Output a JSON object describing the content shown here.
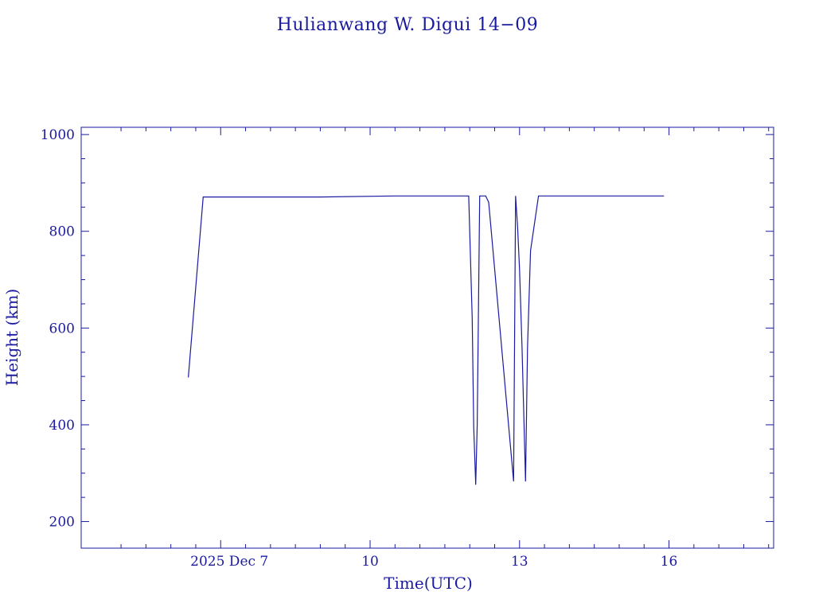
{
  "chart_data": {
    "type": "line",
    "title": "Hulianwang W. Digui 14−09",
    "xlabel": "Time(UTC)",
    "ylabel": "Height (km)",
    "x_unit": "days (December 2025)",
    "xlim": [
      4.2,
      18.1
    ],
    "ylim": [
      145,
      1015
    ],
    "x_major_ticks": [
      {
        "value": 7,
        "label": "2025 Dec  7"
      },
      {
        "value": 10,
        "label": "10"
      },
      {
        "value": 13,
        "label": "13"
      },
      {
        "value": 16,
        "label": "16"
      }
    ],
    "x_minor_ticks": [
      5,
      5.5,
      6,
      6.5,
      7.5,
      8,
      8.5,
      9,
      9.5,
      10.5,
      11,
      11.5,
      12,
      12.5,
      13.5,
      14,
      14.5,
      15,
      15.5,
      16.5,
      17,
      17.5,
      18
    ],
    "y_major_ticks": [
      200,
      400,
      600,
      800,
      1000
    ],
    "y_minor_ticks": [
      250,
      300,
      350,
      450,
      500,
      550,
      650,
      700,
      750,
      850,
      900,
      950
    ],
    "grid": false,
    "legend": "none",
    "color": "#1a1aa0",
    "series": [
      {
        "x": [
          6.35,
          6.65,
          9.0,
          10.5,
          11.98,
          12.05,
          12.08,
          12.12,
          12.15,
          12.2,
          12.32,
          12.38,
          12.88,
          12.92,
          12.96,
          13.0,
          13.05,
          13.12,
          13.16,
          13.22,
          13.38,
          15.9
        ],
        "y": [
          498,
          871,
          871,
          873,
          873,
          620,
          395,
          276,
          400,
          873,
          873,
          860,
          283,
          873,
          810,
          720,
          560,
          283,
          560,
          760,
          873,
          873
        ]
      }
    ]
  }
}
